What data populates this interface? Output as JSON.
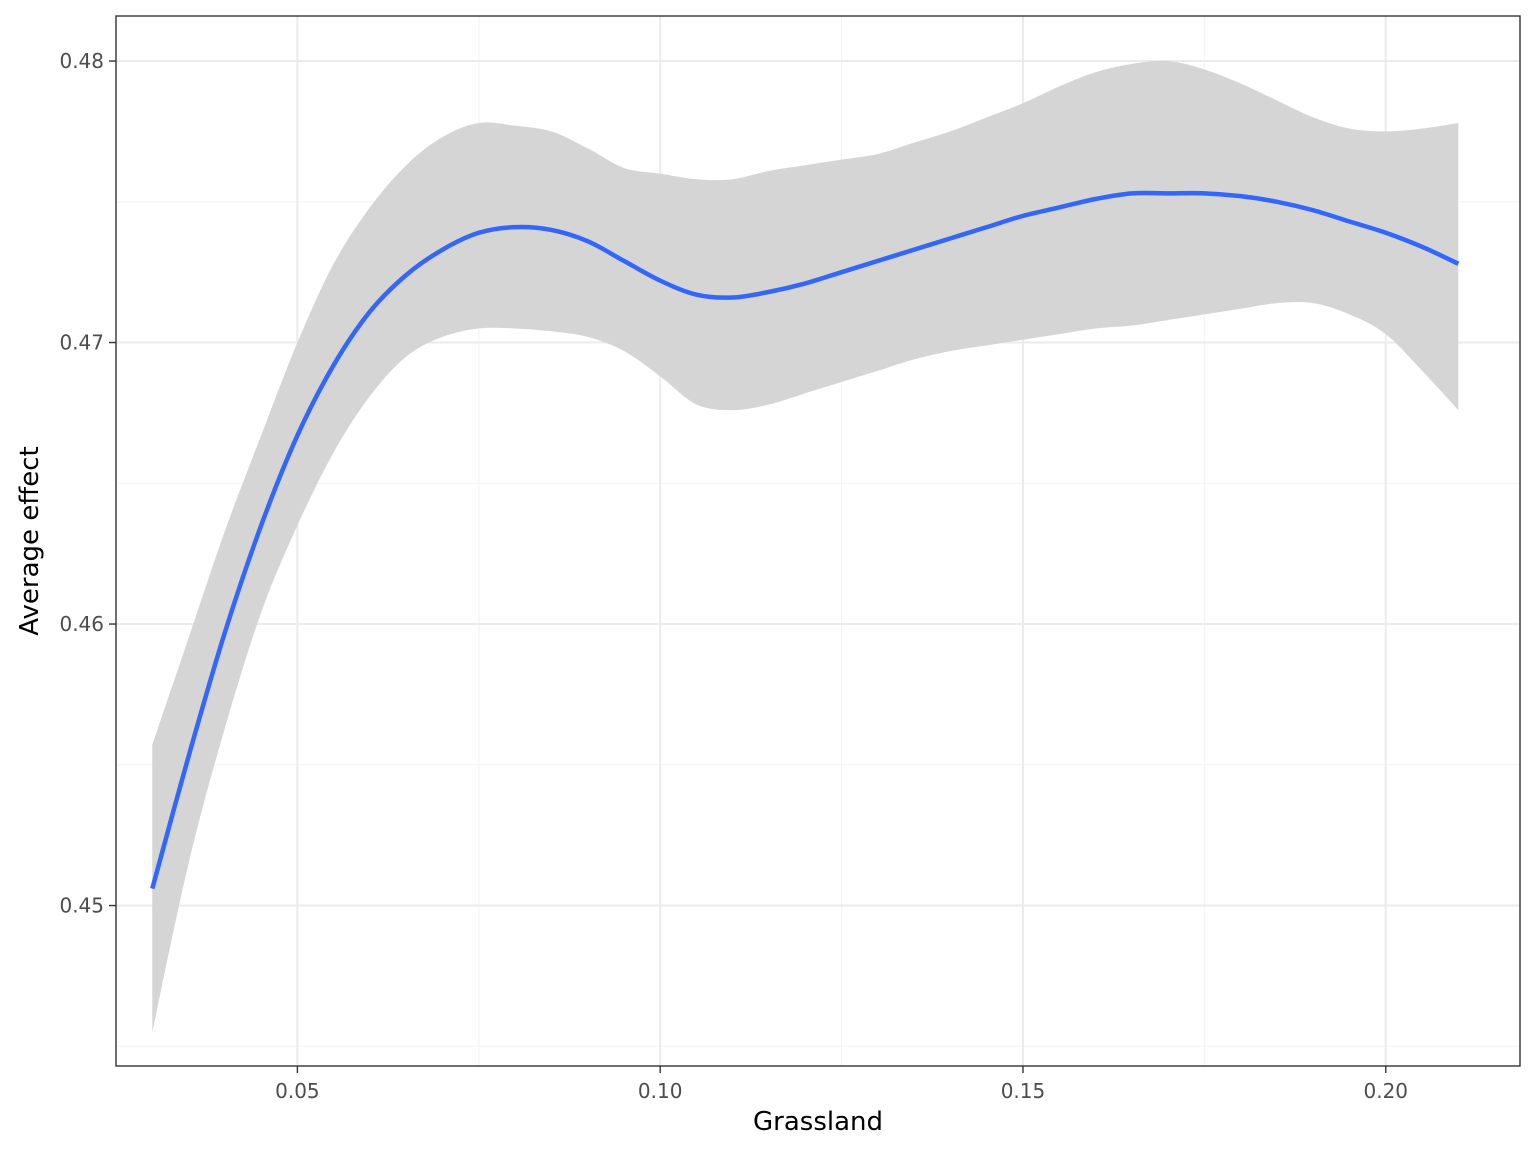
{
  "chart_data": {
    "type": "line",
    "title": "",
    "xlabel": "Grassland",
    "ylabel": "Average effect",
    "xlim": [
      0.025,
      0.2185
    ],
    "ylim": [
      0.4443,
      0.4816
    ],
    "x_ticks": [
      0.05,
      0.1,
      0.15,
      0.2
    ],
    "x_tick_labels": [
      "0.05",
      "0.10",
      "0.15",
      "0.20"
    ],
    "x_minor": [
      0.025,
      0.075,
      0.125,
      0.175
    ],
    "y_ticks": [
      0.45,
      0.46,
      0.47,
      0.48
    ],
    "y_tick_labels": [
      "0.45",
      "0.46",
      "0.47",
      "0.48"
    ],
    "y_minor": [
      0.445,
      0.455,
      0.465,
      0.475
    ],
    "grid": true,
    "series": [
      {
        "x": [
          0.03,
          0.035,
          0.04,
          0.045,
          0.05,
          0.055,
          0.06,
          0.065,
          0.07,
          0.075,
          0.08,
          0.085,
          0.09,
          0.095,
          0.1,
          0.105,
          0.11,
          0.115,
          0.12,
          0.125,
          0.13,
          0.135,
          0.14,
          0.145,
          0.15,
          0.155,
          0.16,
          0.165,
          0.17,
          0.175,
          0.18,
          0.185,
          0.19,
          0.195,
          0.2,
          0.205,
          0.21
        ],
        "y": [
          0.4506,
          0.4553,
          0.4597,
          0.4635,
          0.4667,
          0.4692,
          0.4711,
          0.4724,
          0.4733,
          0.4739,
          0.4741,
          0.474,
          0.4736,
          0.4729,
          0.4722,
          0.4717,
          0.4716,
          0.4718,
          0.4721,
          0.4725,
          0.4729,
          0.4733,
          0.4737,
          0.4741,
          0.4745,
          0.4748,
          0.4751,
          0.4753,
          0.4753,
          0.4753,
          0.4752,
          0.475,
          0.4747,
          0.4743,
          0.4739,
          0.4734,
          0.4728
        ],
        "lower": [
          0.4455,
          0.4515,
          0.4563,
          0.4604,
          0.4635,
          0.4661,
          0.4681,
          0.4695,
          0.4702,
          0.4705,
          0.4705,
          0.4704,
          0.4702,
          0.4697,
          0.4688,
          0.4678,
          0.4676,
          0.4678,
          0.4682,
          0.4686,
          0.469,
          0.4694,
          0.4697,
          0.4699,
          0.4701,
          0.4703,
          0.4705,
          0.4706,
          0.4708,
          0.471,
          0.4712,
          0.4714,
          0.4714,
          0.471,
          0.4703,
          0.469,
          0.4676
        ],
        "upper": [
          0.4557,
          0.4595,
          0.4633,
          0.4667,
          0.47,
          0.4728,
          0.4748,
          0.4763,
          0.4773,
          0.4778,
          0.4777,
          0.4775,
          0.4769,
          0.4762,
          0.476,
          0.4758,
          0.4758,
          0.4761,
          0.4763,
          0.4765,
          0.4767,
          0.4771,
          0.4775,
          0.478,
          0.4785,
          0.4791,
          0.4796,
          0.4799,
          0.48,
          0.4797,
          0.4792,
          0.4786,
          0.478,
          0.4776,
          0.4775,
          0.4776,
          0.4778
        ]
      }
    ]
  },
  "colors": {
    "line": "#3366ff",
    "ribbon": "#d5d5d5",
    "grid_major": "#ebebeb",
    "grid_minor": "#f4f4f4",
    "panel_border": "#333333"
  }
}
